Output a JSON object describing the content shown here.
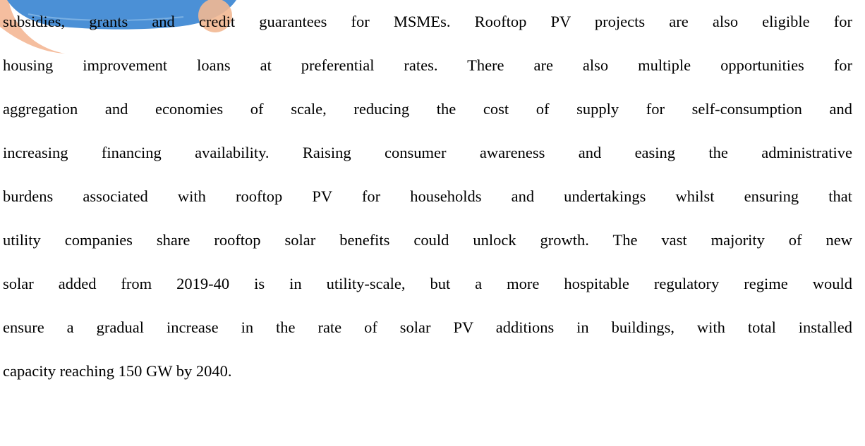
{
  "paragraph": {
    "lines": [
      "subsidies, grants and credit guarantees for MSMEs. Rooftop PV projects are also eligible for",
      "housing improvement loans at preferential rates. There are also multiple opportunities for",
      "aggregation and economies of scale, reducing the cost of supply for self-consumption and",
      "increasing financing availability.  Raising consumer awareness and easing the administrative",
      "burdens associated with rooftop PV for households and undertakings whilst ensuring that",
      "utility companies share rooftop solar benefits could unlock growth. The vast majority of new",
      "solar added from 2019-40 is in utility-scale, but a more hospitable regulatory regime would",
      "ensure a gradual increase in the rate of solar PV additions in buildings, with total installed",
      "capacity reaching 150 GW by 2040."
    ]
  }
}
